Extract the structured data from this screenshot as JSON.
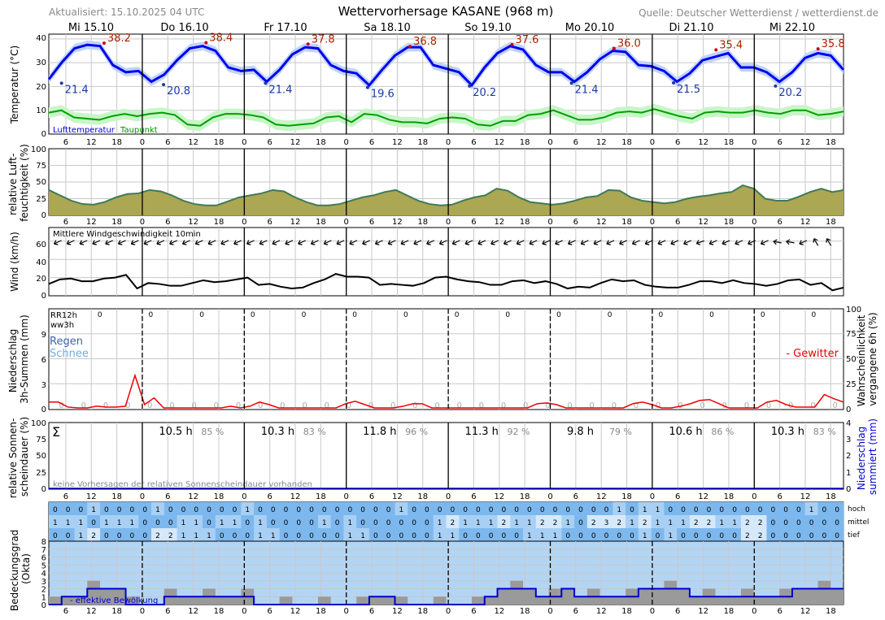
{
  "header": {
    "updated": "Aktualisiert: 15.10.2025 04 UTC",
    "title": "Wettervorhersage KASANE (968 m)",
    "source": "Quelle: Deutscher Wetterdienst / wetterdienst.de"
  },
  "days": [
    "Mi 15.10",
    "Do 16.10",
    "Fr 17.10",
    "Sa 18.10",
    "So 19.10",
    "Mo 20.10",
    "Di 21.10",
    "Mi 22.10"
  ],
  "hour_labels": [
    "6",
    "12",
    "18",
    "0",
    "6",
    "12",
    "18",
    "0",
    "6",
    "12",
    "18",
    "0",
    "6",
    "12",
    "18",
    "0",
    "6",
    "12",
    "18",
    "0",
    "6",
    "12",
    "18",
    "0",
    "6",
    "12",
    "18",
    "0",
    "6",
    "12",
    "18",
    "0"
  ],
  "colors": {
    "temperature": "#0000ee",
    "temperature_band": "#c0d4f8",
    "dewpoint": "#00a000",
    "dewpoint_band": "#c8f5c8",
    "humidity_fill": "#aba752",
    "humidity_line": "#3f7a5a",
    "wind": "#000000",
    "precip": "#ee0000",
    "rain_label": "#4060b0",
    "snow_label": "#6aaee8",
    "cloud_high": "#7cb8ee",
    "cloud_low": "#c9e2f8",
    "octa_bg": "#b3d5f5",
    "octa_bar": "#9a9a9a",
    "octa_line": "#0000cc",
    "max_dot": "#cc0000",
    "max_text": "#aa2200",
    "min_text": "#1a3aa8",
    "sun_pct": "#888888"
  },
  "temp_panel": {
    "ylabel": "Temperatur (°C)",
    "yticks": [
      "0",
      "10",
      "20",
      "30",
      "40"
    ],
    "legend_temp": "Lufttemperatur",
    "legend_dew": "Taupunkt",
    "daily_max": [
      "38.2",
      "38.4",
      "37.8",
      "36.8",
      "37.6",
      "36.0",
      "35.4",
      "35.8"
    ],
    "daily_min": [
      "21.4",
      "20.8",
      "21.4",
      "19.6",
      "20.2",
      "21.4",
      "21.5",
      "20.2"
    ]
  },
  "humidity_panel": {
    "ylabel1": "relative Luft-",
    "ylabel2": "feuchtigkeit (%)",
    "yticks": [
      "0",
      "25",
      "50",
      "75",
      "100"
    ]
  },
  "wind_panel": {
    "ylabel": "Wind (km/h)",
    "title": "Mittlere Windgeschwindigkeit 10min",
    "yticks": [
      "0",
      "20",
      "40",
      "60"
    ]
  },
  "precip_panel": {
    "ylabel1": "Niederschlag",
    "ylabel2": "3h-Summen (mm)",
    "yticks": [
      "0",
      "3",
      "6",
      "9"
    ],
    "rr12h": "RR12h",
    "ww3h": "ww3h",
    "rain": "Regen",
    "snow": "Schnee",
    "thunder": "- Gewitter",
    "right_label1": "Wahrscheinlichkeit",
    "right_label2": "vergangene 6h (%)",
    "right_ticks": [
      "0",
      "25",
      "50",
      "75",
      "100"
    ],
    "rr12h_values": [
      "0",
      "0",
      "0",
      "0",
      "0",
      "0",
      "0",
      "0",
      "0",
      "0",
      "0",
      "0",
      "0",
      "0",
      "0"
    ]
  },
  "sun_panel": {
    "ylabel1": "relative Sonnen-",
    "ylabel2": "scheindauer (%)",
    "yticks": [
      "0",
      "25",
      "50",
      "75",
      "100"
    ],
    "sigma": "Σ",
    "note": "keine Vorhersagen der relativen Sonnenscheindauer vorhanden",
    "right_label1": "Niederschlag",
    "right_label2": "summiert (mm)",
    "right_ticks": [
      "0",
      "1",
      "2",
      "3",
      "4"
    ],
    "sun_hours": [
      "10.5 h",
      "10.3 h",
      "11.8 h",
      "11.3 h",
      "9.8 h",
      "10.6 h",
      "10.3 h"
    ],
    "sun_percent": [
      "85 %",
      "83 %",
      "96 %",
      "92 %",
      "79 %",
      "86 %",
      "83 %"
    ]
  },
  "cloud_panel": {
    "ylabel1": "Bedeckungsgrad",
    "ylabel2": "(Okta)",
    "yticks": [
      "0",
      "1",
      "2",
      "3",
      "4",
      "5",
      "6",
      "7",
      "8"
    ],
    "row_labels": [
      "hoch",
      "mittel",
      "tief"
    ],
    "effective_label": "- effektive Bewölkung",
    "high": [
      "0",
      "0",
      "0",
      "1",
      "0",
      "0",
      "0",
      "0",
      "1",
      "0",
      "0",
      "0",
      "0",
      "0",
      "0",
      "1",
      "0",
      "0",
      "0",
      "0",
      "0",
      "0",
      "0",
      "0",
      "0",
      "0",
      "0",
      "1",
      "0",
      "0",
      "0",
      "0",
      "0",
      "0",
      "0",
      "0",
      "0",
      "0",
      "0",
      "0",
      "0",
      "0",
      "0",
      "0",
      "1",
      "0",
      "1",
      "1",
      "0",
      "0",
      "0",
      "0",
      "0",
      "0",
      "0",
      "0",
      "0",
      "0",
      "0",
      "1",
      "0",
      "0"
    ],
    "mid": [
      "1",
      "1",
      "1",
      "0",
      "1",
      "1",
      "1",
      "0",
      "0",
      "0",
      "1",
      "1",
      "0",
      "1",
      "1",
      "0",
      "1",
      "0",
      "0",
      "0",
      "0",
      "1",
      "0",
      "1",
      "0",
      "0",
      "0",
      "0",
      "0",
      "0",
      "1",
      "2",
      "1",
      "1",
      "1",
      "2",
      "1",
      "1",
      "2",
      "2",
      "1",
      "0",
      "2",
      "3",
      "2",
      "1",
      "2",
      "1",
      "1",
      "1",
      "2",
      "2",
      "1",
      "1",
      "2",
      "2",
      "0",
      "0",
      "0",
      "0",
      "0",
      "0"
    ],
    "low": [
      "0",
      "0",
      "1",
      "2",
      "0",
      "0",
      "0",
      "0",
      "2",
      "2",
      "1",
      "1",
      "1",
      "0",
      "0",
      "0",
      "1",
      "1",
      "0",
      "0",
      "0",
      "0",
      "0",
      "1",
      "1",
      "0",
      "0",
      "0",
      "0",
      "0",
      "1",
      "1",
      "0",
      "0",
      "0",
      "0",
      "0",
      "1",
      "1",
      "1",
      "0",
      "0",
      "0",
      "0",
      "0",
      "0",
      "1",
      "0",
      "1",
      "0",
      "0",
      "0",
      "0",
      "0",
      "2",
      "2",
      "0",
      "0",
      "0",
      "0",
      "0",
      "0"
    ],
    "effective_octa": [
      0,
      1,
      1,
      2,
      2,
      2,
      0,
      0,
      0,
      1,
      1,
      1,
      1,
      1,
      1,
      1,
      0,
      0,
      0,
      0,
      0,
      0,
      0,
      0,
      0,
      1,
      1,
      0,
      0,
      0,
      0,
      0,
      0,
      0,
      1,
      2,
      2,
      2,
      1,
      1,
      2,
      1,
      1,
      1,
      1,
      1,
      2,
      2,
      2,
      2,
      1,
      1,
      1,
      1,
      1,
      1,
      1,
      1,
      2,
      2,
      2,
      2
    ]
  },
  "chart_data": [
    {
      "type": "line",
      "title": "Wettervorhersage KASANE (968 m)",
      "ylabel": "Temperatur (°C)",
      "ylim": [
        0,
        42
      ],
      "x_step_hours": 3,
      "series": [
        {
          "name": "Lufttemperatur",
          "values": [
            23,
            30,
            36,
            37.5,
            37,
            29,
            26,
            26.5,
            22,
            25,
            31,
            36,
            37,
            35,
            28,
            26.5,
            27,
            22,
            27,
            33.5,
            36.5,
            36,
            29,
            26.5,
            25.5,
            20.5,
            27,
            33,
            36.5,
            36.5,
            29,
            27.5,
            26,
            20.5,
            28,
            34,
            37,
            35.5,
            29,
            26,
            26,
            22,
            26,
            31.5,
            35,
            34.5,
            29,
            28.5,
            26.5,
            22,
            25.5,
            31,
            32.5,
            34,
            28,
            28,
            26,
            22,
            26,
            32,
            34,
            33,
            27
          ]
        },
        {
          "name": "Taupunkt",
          "values": [
            9,
            10,
            7,
            6.5,
            6,
            7.5,
            8.5,
            7.5,
            8.5,
            9,
            8,
            4,
            3.5,
            7,
            8.5,
            8.5,
            8,
            7,
            4,
            3.5,
            4,
            4.5,
            7,
            7.5,
            5,
            8.5,
            8,
            6,
            5,
            5,
            4.5,
            6.5,
            7,
            6.5,
            4,
            3.5,
            5.5,
            5.5,
            8,
            8.5,
            10,
            8,
            6,
            6,
            7,
            9,
            9.5,
            9,
            10.5,
            9,
            7.5,
            6.5,
            9,
            9.5,
            9,
            9,
            10,
            9,
            8.5,
            10,
            10,
            8,
            8.5,
            9.5
          ]
        }
      ]
    },
    {
      "type": "area",
      "ylabel": "relative Luftfeuchtigkeit (%)",
      "ylim": [
        0,
        100
      ],
      "x_step_hours": 3,
      "series": [
        {
          "values": [
            38,
            30,
            22,
            17,
            16,
            20,
            27,
            32,
            33,
            38,
            36,
            30,
            22,
            17,
            15,
            15,
            21,
            27,
            30,
            33,
            38,
            36,
            27,
            20,
            15,
            15,
            17,
            22,
            27,
            30,
            35,
            38,
            30,
            22,
            17,
            15,
            16,
            22,
            27,
            30,
            40,
            37,
            27,
            20,
            18,
            16,
            18,
            22,
            27,
            29,
            38,
            37,
            27,
            22,
            20,
            18,
            20,
            25,
            28,
            30,
            33,
            35,
            45,
            40,
            25,
            22,
            22,
            28,
            35,
            40,
            35,
            38
          ]
        }
      ]
    },
    {
      "type": "line",
      "title": "Mittlere Windgeschwindigkeit 10min",
      "ylabel": "Wind (km/h)",
      "ylim": [
        0,
        75
      ],
      "x_step_hours": 3,
      "series": [
        {
          "values": [
            13,
            18,
            19,
            16,
            16,
            19,
            20,
            23,
            8,
            14,
            13,
            11,
            11,
            14,
            17,
            15,
            16,
            18,
            20,
            12,
            13,
            10,
            8,
            9,
            14,
            18,
            24,
            21,
            21,
            20,
            12,
            13,
            12,
            11,
            14,
            20,
            21,
            18,
            16,
            15,
            12,
            12,
            16,
            17,
            14,
            16,
            13,
            8,
            10,
            9,
            14,
            18,
            16,
            17,
            12,
            10,
            9,
            9,
            12,
            16,
            16,
            14,
            17,
            14,
            13,
            11,
            13,
            17,
            18,
            12,
            14,
            6,
            9
          ]
        }
      ]
    },
    {
      "type": "line",
      "title": "Niederschlag 3h-Summen (mm)",
      "ylabel": "Niederschlag 3h-Summen (mm)",
      "ylim": [
        0,
        12
      ],
      "x_step_hours": 3,
      "series": [
        {
          "name": "Gewitter",
          "values": [
            0.8,
            0.8,
            0.2,
            0.1,
            0.1,
            0.3,
            0.2,
            0.2,
            0.3,
            4,
            0.5,
            1.3,
            0.1,
            0.1,
            0.1,
            0.1,
            0.1,
            0.1,
            0.1,
            0.3,
            0.1,
            0.3,
            0.8,
            0.5,
            0.1,
            0.1,
            0.1,
            0.1,
            0.1,
            0.1,
            0.1,
            0.6,
            0.9,
            0.5,
            0.1,
            0.1,
            0.1,
            0.3,
            0.6,
            0.6,
            0.1,
            0.1,
            0.1,
            0.1,
            0.1,
            0.1,
            0.1,
            0.1,
            0.1,
            0.1,
            0.1,
            0.6,
            0.7,
            0.5,
            0.1,
            0.1,
            0.1,
            0.1,
            0.1,
            0.1,
            0.1,
            0.6,
            0.8,
            0.5,
            0.1,
            0.1,
            0.3,
            0.6,
            1,
            1.1,
            0.6,
            0.1,
            0.1,
            0.1,
            0.1,
            0.8,
            1,
            0.5,
            0.2,
            0.2,
            0.2,
            1.7,
            1.2,
            0.8
          ]
        }
      ]
    }
  ]
}
